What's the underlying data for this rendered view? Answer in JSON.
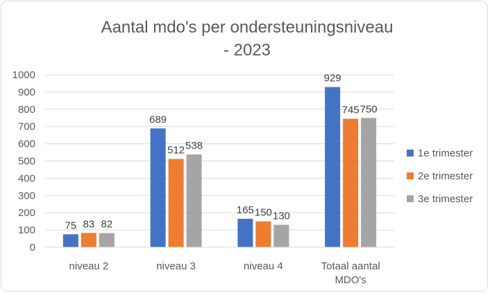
{
  "chart_data": {
    "type": "bar",
    "title": [
      "Aantal mdo's per ondersteuningsniveau",
      "- 2023"
    ],
    "xlabel": "",
    "ylabel": "",
    "categories": [
      [
        "niveau 2"
      ],
      [
        "niveau 3"
      ],
      [
        "niveau 4"
      ],
      [
        "Totaal aantal",
        "MDO's"
      ]
    ],
    "series": [
      {
        "name": "1e trimester",
        "color": "#4472c4",
        "values": [
          75,
          689,
          165,
          929
        ]
      },
      {
        "name": "2e trimester",
        "color": "#ed7d31",
        "values": [
          83,
          512,
          150,
          745
        ]
      },
      {
        "name": "3e trimester",
        "color": "#a5a5a5",
        "values": [
          82,
          538,
          130,
          750
        ]
      }
    ],
    "ylim": [
      0,
      1000
    ],
    "yticks": [
      "0",
      "100",
      "200",
      "300",
      "400",
      "500",
      "600",
      "700",
      "800",
      "900",
      "1000"
    ],
    "grid": true,
    "data_labels": true,
    "legend_position": "right"
  }
}
